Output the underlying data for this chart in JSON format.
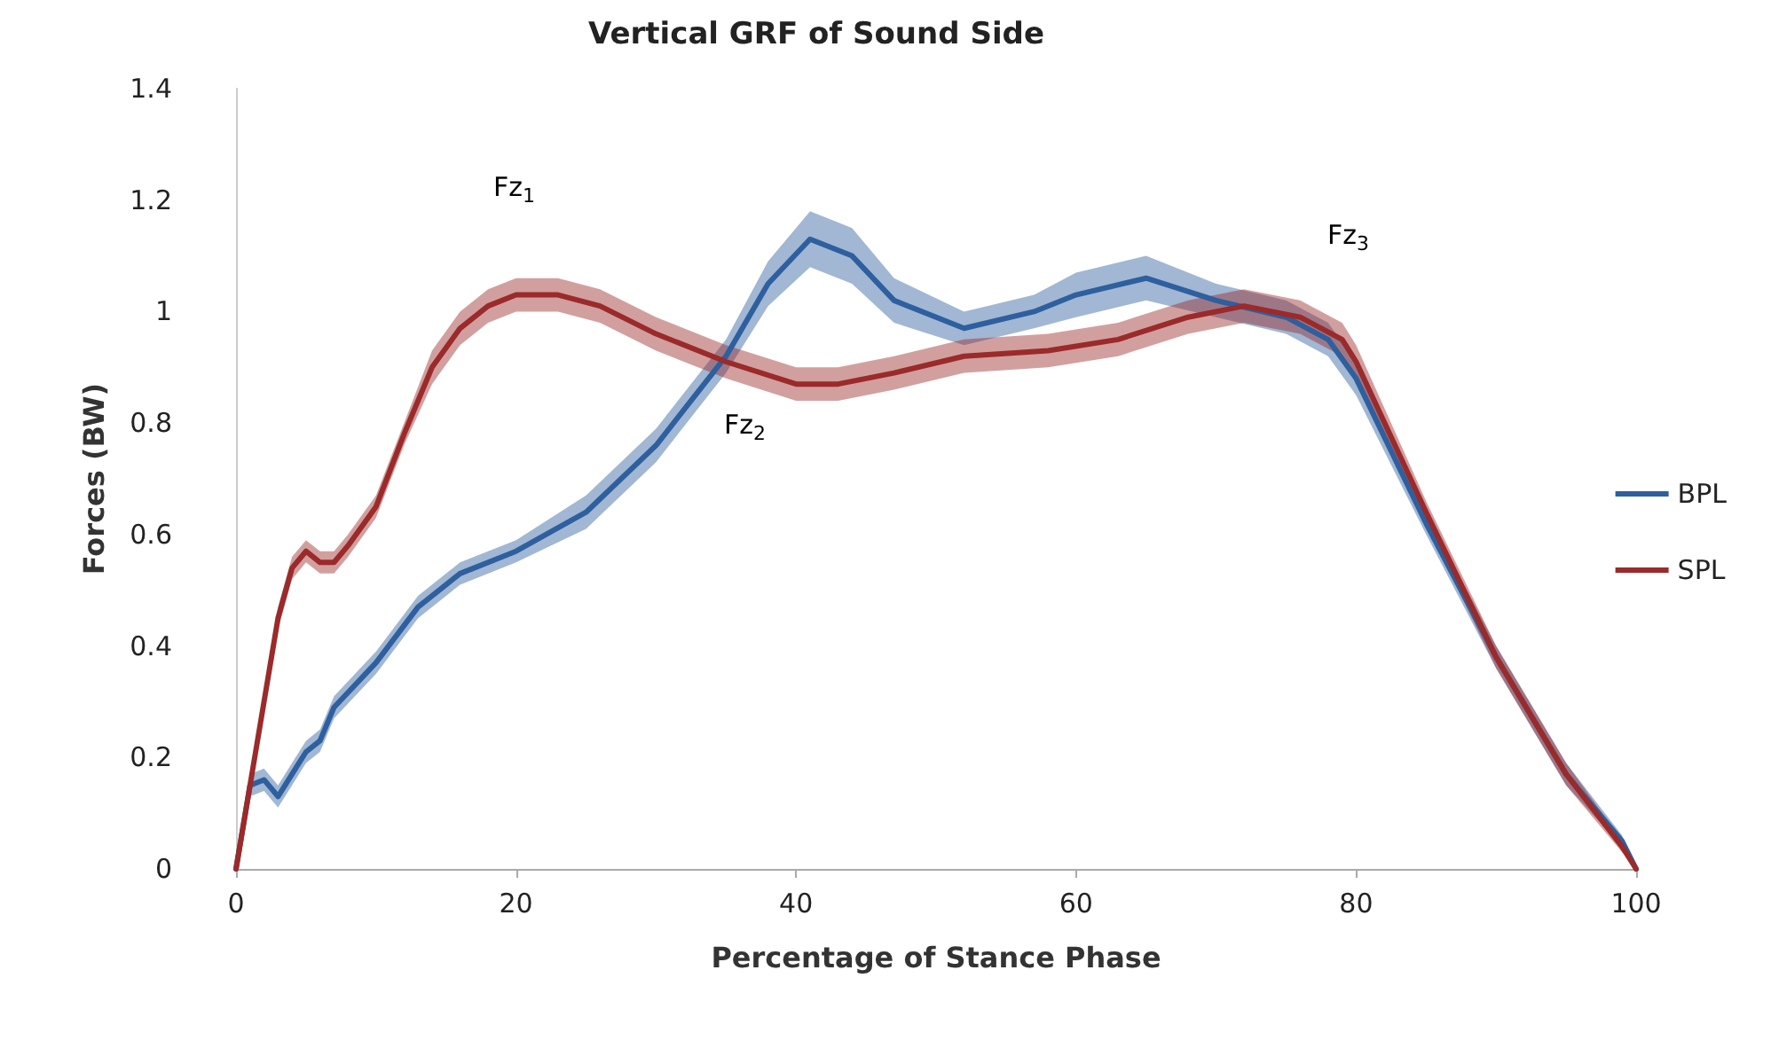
{
  "chart_data": {
    "type": "line",
    "title": "Vertical GRF of Sound Side",
    "xlabel": "Percentage of Stance Phase",
    "ylabel": "Forces (BW)",
    "xlim": [
      0,
      100
    ],
    "xticks": [
      0,
      20,
      40,
      60,
      80,
      100
    ],
    "ylim": [
      0,
      1.4
    ],
    "yticks": [
      0,
      0.2,
      0.4,
      0.6,
      0.8,
      1,
      1.2,
      1.4
    ],
    "grid": false,
    "legend": "right",
    "marker": "none",
    "line_style": "solid",
    "annotations": [
      "Fz$_{1}$",
      "Fz$_{2}$",
      "Fz$_{3}$"
    ],
    "series": [
      {
        "name": "BPL",
        "color": "#2e5f9e",
        "x": [
          0,
          1,
          2,
          3,
          4,
          5,
          6,
          7,
          10,
          13,
          16,
          20,
          25,
          30,
          35,
          38,
          41,
          44,
          47,
          52,
          57,
          60,
          65,
          70,
          75,
          78,
          80,
          85,
          90,
          95,
          99,
          100
        ],
        "values": [
          0,
          0.15,
          0.16,
          0.13,
          0.17,
          0.21,
          0.23,
          0.29,
          0.37,
          0.47,
          0.53,
          0.57,
          0.64,
          0.76,
          0.92,
          1.05,
          1.13,
          1.1,
          1.02,
          0.97,
          1.0,
          1.03,
          1.06,
          1.02,
          0.99,
          0.95,
          0.88,
          0.62,
          0.38,
          0.17,
          0.05,
          0
        ],
        "lower": [
          0,
          0.13,
          0.14,
          0.11,
          0.15,
          0.19,
          0.21,
          0.27,
          0.35,
          0.45,
          0.51,
          0.55,
          0.61,
          0.73,
          0.89,
          1.01,
          1.08,
          1.05,
          0.98,
          0.94,
          0.97,
          0.99,
          1.02,
          0.99,
          0.96,
          0.92,
          0.85,
          0.6,
          0.36,
          0.15,
          0.04,
          0
        ],
        "upper": [
          0,
          0.17,
          0.18,
          0.15,
          0.19,
          0.23,
          0.25,
          0.31,
          0.39,
          0.49,
          0.55,
          0.59,
          0.67,
          0.79,
          0.95,
          1.09,
          1.18,
          1.15,
          1.06,
          1.0,
          1.03,
          1.07,
          1.1,
          1.05,
          1.02,
          0.98,
          0.91,
          0.64,
          0.4,
          0.19,
          0.06,
          0
        ]
      },
      {
        "name": "SPL",
        "color": "#9b2a2a",
        "x": [
          0,
          1,
          2,
          3,
          4,
          5,
          6,
          7,
          8,
          10,
          12,
          14,
          16,
          18,
          20,
          23,
          26,
          30,
          35,
          40,
          43,
          47,
          52,
          58,
          63,
          68,
          72,
          76,
          79,
          80,
          85,
          90,
          95,
          99,
          100
        ],
        "values": [
          0,
          0.15,
          0.3,
          0.45,
          0.54,
          0.57,
          0.55,
          0.55,
          0.58,
          0.65,
          0.78,
          0.9,
          0.97,
          1.01,
          1.03,
          1.03,
          1.01,
          0.96,
          0.91,
          0.87,
          0.87,
          0.89,
          0.92,
          0.93,
          0.95,
          0.99,
          1.01,
          0.99,
          0.95,
          0.91,
          0.64,
          0.38,
          0.17,
          0.04,
          0
        ],
        "lower": [
          0,
          0.13,
          0.28,
          0.43,
          0.52,
          0.55,
          0.53,
          0.53,
          0.56,
          0.63,
          0.76,
          0.87,
          0.94,
          0.98,
          1.0,
          1.0,
          0.98,
          0.93,
          0.88,
          0.84,
          0.84,
          0.86,
          0.89,
          0.9,
          0.92,
          0.96,
          0.98,
          0.96,
          0.92,
          0.88,
          0.62,
          0.36,
          0.15,
          0.03,
          0
        ],
        "upper": [
          0,
          0.17,
          0.32,
          0.47,
          0.56,
          0.59,
          0.57,
          0.57,
          0.6,
          0.67,
          0.8,
          0.93,
          1.0,
          1.04,
          1.06,
          1.06,
          1.04,
          0.99,
          0.94,
          0.9,
          0.9,
          0.92,
          0.95,
          0.96,
          0.98,
          1.02,
          1.04,
          1.02,
          0.98,
          0.94,
          0.66,
          0.4,
          0.19,
          0.05,
          0
        ]
      }
    ]
  }
}
